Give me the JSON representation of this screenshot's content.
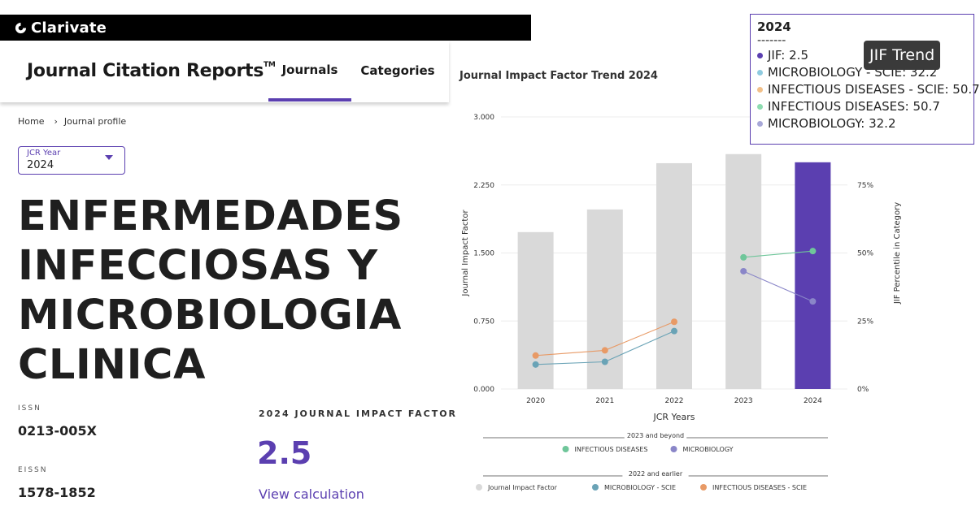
{
  "brand": {
    "name": "Clarivate",
    "icon": "clarivate-logo-icon"
  },
  "header": {
    "product": "Journal Citation Reports",
    "trademark": "TM",
    "tabs": [
      {
        "label": "Journals",
        "active": true
      },
      {
        "label": "Categories",
        "active": false
      }
    ]
  },
  "breadcrumb": {
    "home": "Home",
    "current": "Journal profile"
  },
  "jcr_year": {
    "label": "JCR Year",
    "value": "2024"
  },
  "journal": {
    "title": "ENFERMEDADES INFECCIOSAS Y MICROBIOLOGIA CLINICA",
    "issn_label": "ISSN",
    "issn": "0213-005X",
    "eissn_label": "EISSN",
    "eissn": "1578-1852"
  },
  "jif": {
    "label": "2024 JOURNAL IMPACT FACTOR",
    "value": "2.5",
    "link": "View calculation"
  },
  "tooltip": {
    "year": "2024",
    "separator": "-------",
    "rows": [
      {
        "text": "JIF: 2.5",
        "color": "#5b3fb0"
      },
      {
        "text": "MICROBIOLOGY - SCIE: 32.2",
        "color": "#8fcbe0"
      },
      {
        "text": "INFECTIOUS DISEASES - SCIE: 50.7",
        "color": "#f2c089"
      },
      {
        "text": "INFECTIOUS DISEASES: 50.7",
        "color": "#8ddcb0"
      },
      {
        "text": "MICROBIOLOGY: 32.2",
        "color": "#a8a8d8"
      }
    ]
  },
  "badge": "JIF Trend",
  "chart_data": {
    "type": "bar",
    "title": "Journal Impact Factor Trend 2024",
    "xlabel": "JCR Years",
    "ylabel": "Journal Impact Factor",
    "y2label": "JIF Percentile in Category",
    "categories": [
      "2020",
      "2021",
      "2022",
      "2023",
      "2024"
    ],
    "ylim": [
      0,
      3
    ],
    "y_ticks": [
      "3.000",
      "2.250",
      "1.500",
      "0.750",
      "0.000"
    ],
    "y2lim": [
      0,
      100
    ],
    "y2_ticks": [
      "75%",
      "50%",
      "25%",
      "0%"
    ],
    "bars": {
      "name": "Journal Impact Factor",
      "values": [
        1.73,
        1.98,
        2.49,
        2.59,
        2.5
      ],
      "colors": [
        "#d9d9d9",
        "#d9d9d9",
        "#d9d9d9",
        "#d9d9d9",
        "#5b3fb0"
      ]
    },
    "series": [
      {
        "name": "INFECTIOUS DISEASES",
        "color": "#6fc69a",
        "x": [
          "2023",
          "2024"
        ],
        "values": [
          48.4,
          50.7
        ]
      },
      {
        "name": "MICROBIOLOGY",
        "color": "#8a86c8",
        "x": [
          "2023",
          "2024"
        ],
        "values": [
          43.3,
          32.2
        ]
      },
      {
        "name": "MICROBIOLOGY - SCIE",
        "color": "#6aa3b6",
        "x": [
          "2020",
          "2021",
          "2022"
        ],
        "values": [
          9.0,
          10.0,
          21.3
        ]
      },
      {
        "name": "INFECTIOUS DISEASES - SCIE",
        "color": "#e89a66",
        "x": [
          "2020",
          "2021",
          "2022"
        ],
        "values": [
          12.3,
          14.2,
          24.7
        ]
      }
    ],
    "legend_groups": [
      {
        "title": "2023 and beyond",
        "items": [
          "INFECTIOUS DISEASES",
          "MICROBIOLOGY"
        ]
      },
      {
        "title": "2022 and earlier",
        "items": [
          "Journal Impact Factor",
          "MICROBIOLOGY - SCIE",
          "INFECTIOUS DISEASES - SCIE"
        ]
      }
    ],
    "legend_colors": {
      "INFECTIOUS DISEASES": "#6fc69a",
      "MICROBIOLOGY": "#8a86c8",
      "Journal Impact Factor": "#d9d9d9",
      "MICROBIOLOGY - SCIE": "#6aa3b6",
      "INFECTIOUS DISEASES - SCIE": "#e89a66"
    },
    "grid": true,
    "legend_position": "bottom"
  }
}
